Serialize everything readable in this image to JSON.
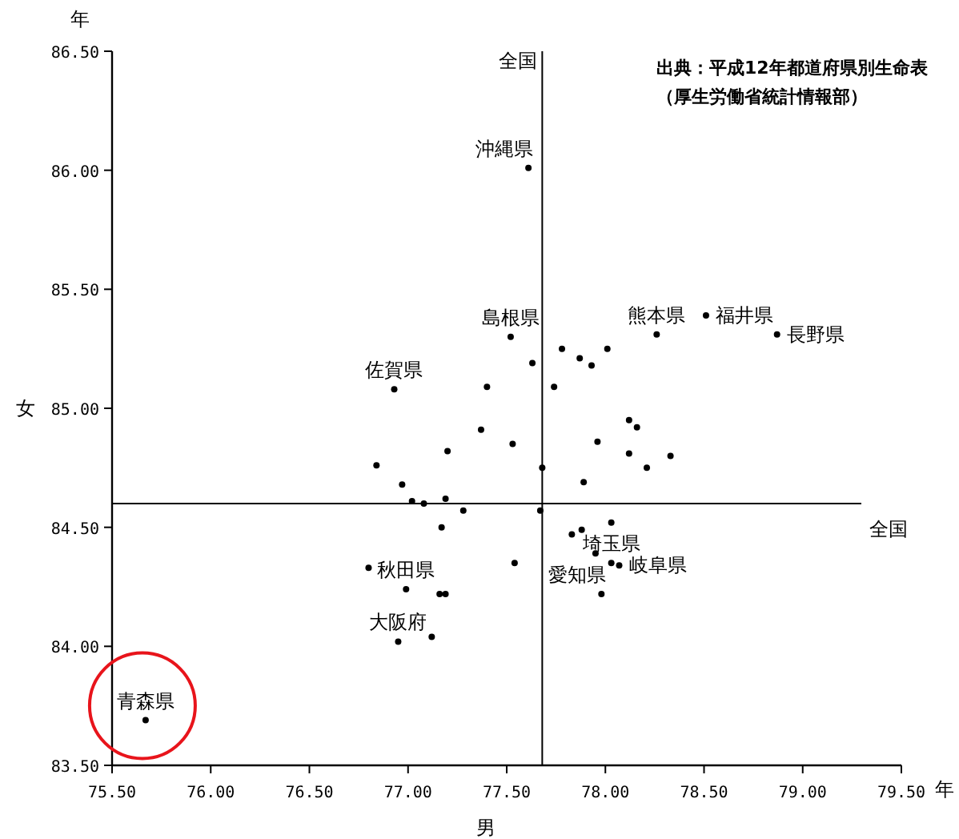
{
  "chart_data": {
    "type": "scatter",
    "xlabel": "男",
    "ylabel": "女",
    "xlim": [
      75.5,
      79.5
    ],
    "ylim": [
      83.5,
      86.5
    ],
    "xticks": [
      {
        "value": 75.5,
        "label": "75.50"
      },
      {
        "value": 76,
        "label": "76.00"
      },
      {
        "value": 76.5,
        "label": "76.50"
      },
      {
        "value": 77,
        "label": "77.00"
      },
      {
        "value": 77.5,
        "label": "77.50"
      },
      {
        "value": 78,
        "label": "78.00"
      },
      {
        "value": 78.5,
        "label": "78.50"
      },
      {
        "value": 79,
        "label": "79.00"
      },
      {
        "value": 79.5,
        "label": "79.50"
      }
    ],
    "yticks": [
      {
        "value": 83.5,
        "label": "83.50"
      },
      {
        "value": 84,
        "label": "84.00"
      },
      {
        "value": 84.5,
        "label": "84.50"
      },
      {
        "value": 85,
        "label": "85.00"
      },
      {
        "value": 85.5,
        "label": "85.50"
      },
      {
        "value": 86,
        "label": "86.00"
      },
      {
        "value": 86.5,
        "label": "86.50"
      }
    ],
    "marker": "circle",
    "grid": false,
    "series": [
      {
        "color": "#000000",
        "x": [
          75.67,
          77.61,
          77.52,
          77.63,
          76.93,
          77.4,
          77.78,
          77.87,
          77.93,
          78.01,
          77.74,
          77.37,
          77.53,
          77.2,
          76.84,
          76.97,
          77.02,
          77.08,
          77.19,
          77.28,
          77.67,
          77.68,
          77.89,
          77.96,
          78.12,
          78.16,
          78.12,
          78.21,
          78.33,
          77.17,
          77.83,
          77.88,
          78.03,
          78.26,
          78.51,
          78.87,
          76.8,
          76.99,
          77.16,
          77.19,
          76.95,
          77.12,
          77.54,
          77.95,
          78.03,
          78.07,
          77.98
        ],
        "values": [
          83.69,
          86.01,
          85.3,
          85.19,
          85.08,
          85.09,
          85.25,
          85.21,
          85.18,
          85.25,
          85.09,
          84.91,
          84.85,
          84.82,
          84.76,
          84.68,
          84.61,
          84.6,
          84.62,
          84.57,
          84.57,
          84.75,
          84.69,
          84.86,
          84.95,
          84.92,
          84.81,
          84.75,
          84.8,
          84.5,
          84.47,
          84.49,
          84.52,
          85.31,
          85.39,
          85.31,
          84.33,
          84.24,
          84.22,
          84.22,
          84.02,
          84.04,
          84.35,
          84.39,
          84.35,
          84.34,
          84.22
        ]
      }
    ],
    "ref_lines": [
      {
        "axis": "x",
        "value": 77.68,
        "label": "全国"
      },
      {
        "axis": "y",
        "value": 84.6,
        "label": "全国"
      }
    ],
    "annotations": [
      {
        "text": "青森県",
        "x": 75.67,
        "y": 83.69
      },
      {
        "text": "沖縄県",
        "x": 77.61,
        "y": 86.01
      },
      {
        "text": "島根県",
        "x": 77.52,
        "y": 85.3
      },
      {
        "text": "佐賀県",
        "x": 76.93,
        "y": 85.08
      },
      {
        "text": "熊本県",
        "x": 78.26,
        "y": 85.31
      },
      {
        "text": "福井県",
        "x": 78.51,
        "y": 85.39
      },
      {
        "text": "長野県",
        "x": 78.87,
        "y": 85.31
      },
      {
        "text": "秋田県",
        "x": 76.99,
        "y": 84.24
      },
      {
        "text": "大阪府",
        "x": 76.95,
        "y": 84.02
      },
      {
        "text": "埼玉県",
        "x": 78.03,
        "y": 84.35
      },
      {
        "text": "岐阜県",
        "x": 78.07,
        "y": 84.34
      },
      {
        "text": "愛知県",
        "x": 77.98,
        "y": 84.22
      },
      "出典：平成12年都道府県別生命表（厚生労働省統計情報部）",
      "年",
      "年"
    ]
  }
}
